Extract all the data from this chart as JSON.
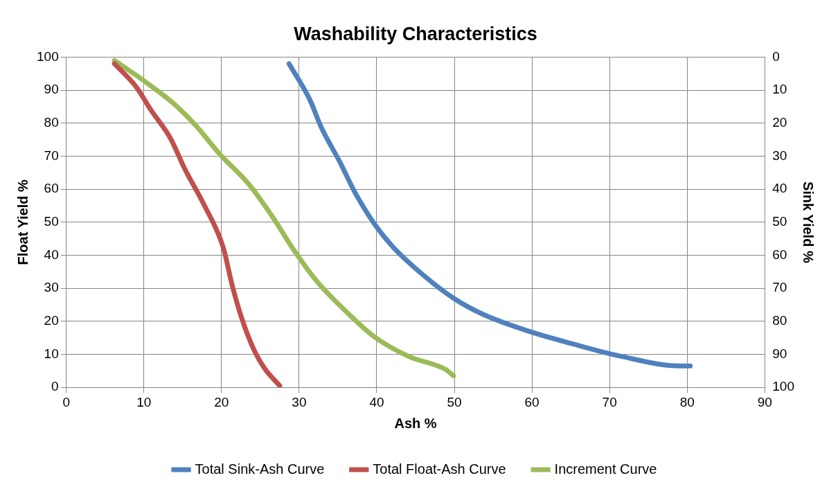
{
  "chart_data": {
    "type": "line",
    "title": "Washability Characteristics",
    "xlabel": "Ash %",
    "ylabel": "Float Yield %",
    "y2label": "Sink Yield %",
    "xlim": [
      0,
      90
    ],
    "xticks": [
      0,
      10,
      20,
      30,
      40,
      50,
      60,
      70,
      80,
      90
    ],
    "ylim": [
      0,
      100
    ],
    "yticks": [
      0,
      10,
      20,
      30,
      40,
      50,
      60,
      70,
      80,
      90,
      100
    ],
    "y2lim": [
      100,
      0
    ],
    "y2ticks": [
      0,
      10,
      20,
      30,
      40,
      50,
      60,
      70,
      80,
      90,
      100
    ],
    "grid": true,
    "legend": "bottom",
    "marker": "none",
    "line_style": "solid",
    "series": [
      {
        "name": "Total Sink-Ash Curve",
        "color": "#4f81bd",
        "x": [
          28.7,
          31.4,
          32.8,
          35.3,
          37.2,
          39.7,
          42.1,
          46.0,
          49.9,
          53.8,
          59.6,
          65.5,
          71.3,
          79.1,
          80.4
        ],
        "values": [
          98,
          87,
          79,
          68,
          59,
          49.5,
          42.5,
          34,
          27,
          22,
          17,
          13,
          9.5,
          6.5,
          6.5
        ]
      },
      {
        "name": "Total Float-Ash Curve",
        "color": "#c0504d",
        "x": [
          6.2,
          9,
          10.9,
          13.4,
          15.3,
          17.7,
          20.2,
          21.4,
          22.6,
          24.1,
          25.5,
          27.5
        ],
        "values": [
          98,
          91,
          84,
          75.5,
          66,
          55.5,
          42.5,
          30.7,
          21,
          11.8,
          5.9,
          0.5
        ]
      },
      {
        "name": "Increment Curve",
        "color": "#9bbb59",
        "x": [
          6.2,
          9.9,
          13.8,
          16.8,
          19.7,
          23.6,
          26.5,
          29.4,
          32.4,
          36.3,
          39.7,
          44.1,
          48.9,
          49.9
        ],
        "values": [
          99,
          93,
          86,
          79,
          70.8,
          61.3,
          51.9,
          41.3,
          31.8,
          22.4,
          15.3,
          9.4,
          5.4,
          3.5
        ]
      }
    ]
  }
}
